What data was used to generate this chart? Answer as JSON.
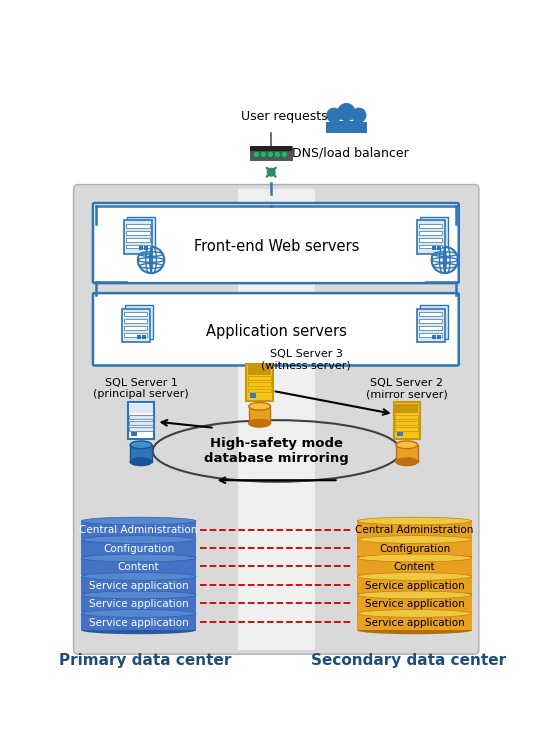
{
  "bg_color": "#d9d9d9",
  "stripe_color": "#e8e8e8",
  "border_color": "#2e75b6",
  "title_primary": "Primary data center",
  "title_secondary": "Secondary data center",
  "text_color_blue": "#1f4e79",
  "db_labels_left": [
    "Central Administration",
    "Configuration",
    "Content",
    "Service application",
    "Service application",
    "Service application"
  ],
  "db_labels_right": [
    "Central Administration",
    "Configuration",
    "Content",
    "Service application",
    "Service application",
    "Service application"
  ],
  "db_color_left": "#4472c4",
  "db_color_right": "#e8a020",
  "red_dash_color": "#cc0000",
  "label_web": "Front-end Web servers",
  "label_app": "Application servers",
  "label_sql1": "SQL Server 1\n(principal server)",
  "label_sql2": "SQL Server 2\n(mirror server)",
  "label_sql3": "SQL Server 3\n(witness server)",
  "label_mirror": "High-safety mode\ndatabase mirroring",
  "label_dns": "DNS/load balancer",
  "label_users": "User requests",
  "people_color": "#2e75b6",
  "router_color": "#404040",
  "gold_server_body": "#d4a800",
  "gold_server_light": "#f5c518",
  "blue_server_body": "#dce6f0",
  "blue_server_stripe": "#2e75b6",
  "fig_w": 5.39,
  "fig_h": 7.55,
  "dpi": 100
}
